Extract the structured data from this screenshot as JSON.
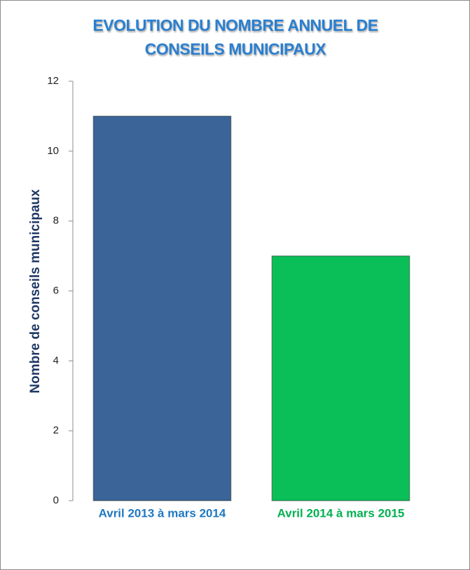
{
  "chart_data": {
    "type": "bar",
    "title": "EVOLUTION DU NOMBRE ANNUEL DE CONSEILS MUNICIPAUX",
    "y_label": "Nombre de conseils municipaux",
    "categories": [
      "Avril 2013 à mars 2014",
      "Avril 2014 à mars 2015"
    ],
    "values": [
      11,
      7
    ],
    "colors": [
      "#3b6598",
      "#0abf58"
    ],
    "label_colors": [
      "#1f78c1",
      "#00b050"
    ],
    "ylim": [
      0,
      12
    ],
    "yticks": [
      0,
      2,
      4,
      6,
      8,
      10,
      12
    ],
    "grid": false
  }
}
